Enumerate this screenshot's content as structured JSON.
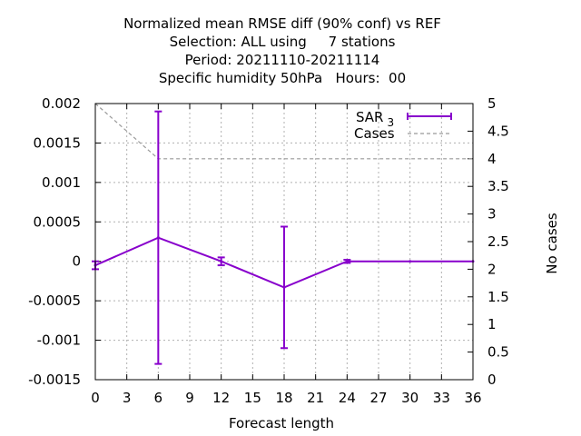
{
  "chart_data": {
    "type": "line",
    "title_lines": [
      "Normalized mean RMSE diff (90% conf) vs REF",
      "Selection: ALL using     7 stations",
      "Period: 20211110-20211114",
      "Specific humidity 50hPa   Hours:  00"
    ],
    "xlabel": "Forecast length",
    "y2label": "No cases",
    "xlim": [
      0,
      36
    ],
    "ylim": [
      -0.0015,
      0.002
    ],
    "y2lim": [
      0,
      5
    ],
    "x_ticks": [
      "0",
      "3",
      "6",
      "9",
      "12",
      "15",
      "18",
      "21",
      "24",
      "27",
      "30",
      "33",
      "36"
    ],
    "y_ticks": [
      "0.002",
      "0.0015",
      "0.001",
      "0.0005",
      "0",
      "-0.0005",
      "-0.001",
      "-0.0015"
    ],
    "y2_ticks": [
      "5",
      "4.5",
      "4",
      "3.5",
      "3",
      "2.5",
      "2",
      "1.5",
      "1",
      "0.5",
      "0"
    ],
    "grid": true,
    "legend_position": "top-right",
    "series": [
      {
        "name": "SAR",
        "name_subscript": "3",
        "color": "#8800cc",
        "x": [
          0,
          6,
          12,
          18,
          24,
          30,
          36
        ],
        "y": [
          -5e-05,
          0.0003,
          0.0,
          -0.00033,
          0.0,
          0.0,
          0.0
        ],
        "err_low": [
          -0.0001,
          -0.0013,
          -5e-05,
          -0.0011,
          -2e-05,
          0.0,
          0.0
        ],
        "err_high": [
          0.0,
          0.0019,
          5e-05,
          0.00044,
          2e-05,
          0.0,
          0.0
        ]
      },
      {
        "name": "Cases",
        "color": "#999999",
        "axis": "y2",
        "x": [
          0,
          6,
          12,
          18,
          24,
          30,
          36
        ],
        "y": [
          5,
          4,
          4,
          4,
          4,
          4,
          4
        ]
      }
    ]
  }
}
